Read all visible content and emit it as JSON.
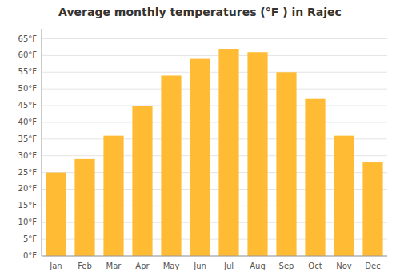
{
  "chart_data": {
    "type": "bar",
    "title": "Average monthly temperatures (°F ) in Rajec",
    "categories": [
      "Jan",
      "Feb",
      "Mar",
      "Apr",
      "May",
      "Jun",
      "Jul",
      "Aug",
      "Sep",
      "Oct",
      "Nov",
      "Dec"
    ],
    "values": [
      25,
      29,
      36,
      45,
      54,
      59,
      62,
      61,
      55,
      47,
      36,
      28
    ],
    "color": "#FFBB33",
    "ylim": [
      0,
      68
    ],
    "yticks": [
      {
        "value": 0,
        "label": "0°F"
      },
      {
        "value": 5,
        "label": "5°F"
      },
      {
        "value": 10,
        "label": "10°F"
      },
      {
        "value": 15,
        "label": "15°F"
      },
      {
        "value": 20,
        "label": "20°F"
      },
      {
        "value": 25,
        "label": "25°F"
      },
      {
        "value": 30,
        "label": "30°F"
      },
      {
        "value": 35,
        "label": "35°F"
      },
      {
        "value": 40,
        "label": "40°F"
      },
      {
        "value": 45,
        "label": "45°F"
      },
      {
        "value": 50,
        "label": "50°F"
      },
      {
        "value": 55,
        "label": "55°F"
      },
      {
        "value": 60,
        "label": "60°F"
      },
      {
        "value": 65,
        "label": "65°F"
      }
    ],
    "grid": true
  }
}
